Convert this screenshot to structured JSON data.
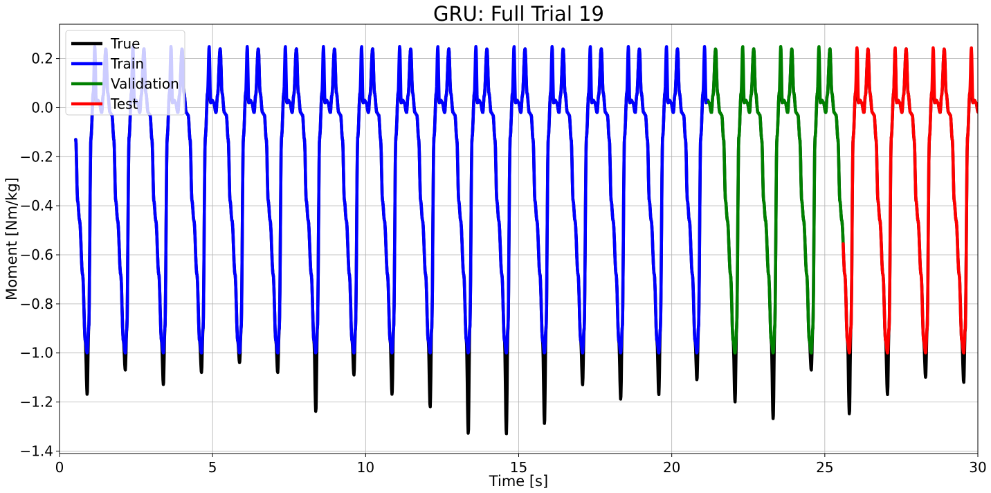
{
  "chart_data": {
    "type": "line",
    "title": "GRU: Full Trial 19",
    "xlabel": "Time [s]",
    "ylabel": "Moment [Nm/kg]",
    "xlim": [
      0,
      30
    ],
    "ylim": [
      -1.41,
      0.34
    ],
    "xticks": [
      0,
      5,
      10,
      15,
      20,
      25,
      30
    ],
    "xtick_labels": [
      "0",
      "5",
      "10",
      "15",
      "20",
      "25",
      "30"
    ],
    "yticks": [
      -1.4,
      -1.2,
      -1.0,
      -0.8,
      -0.6,
      -0.4,
      -0.2,
      0.0,
      0.2
    ],
    "ytick_labels": [
      "−1.4",
      "−1.2",
      "−1.0",
      "−0.8",
      "−0.6",
      "−0.4",
      "−0.2",
      "0.0",
      "0.2"
    ],
    "grid": true,
    "legend_position": "top-left",
    "gait_cycle_period_s": 1.245,
    "gait_cycle_start_s": 0.53,
    "series": [
      {
        "name": "True",
        "color": "#000000",
        "x_range": [
          0.53,
          30
        ],
        "cycle_minima": [
          -1.17,
          -1.07,
          -1.13,
          -1.08,
          -1.04,
          -1.08,
          -1.24,
          -1.09,
          -1.17,
          -1.22,
          -1.33,
          -1.33,
          -1.29,
          -1.13,
          -1.19,
          -1.17,
          -1.11,
          -1.2,
          -1.27,
          -1.07,
          -1.25,
          -1.17,
          -1.1,
          -1.12
        ],
        "cycle_peaks": [
          0.07,
          0.09,
          0.08,
          0.08,
          0.09,
          0.08,
          0.08,
          0.08,
          0.08,
          0.08,
          0.08,
          0.08,
          0.08,
          0.09,
          0.08,
          0.08,
          0.09,
          0.06,
          0.06,
          0.09,
          0.06,
          0.23,
          0.09,
          0.09
        ]
      },
      {
        "name": "Train",
        "color": "#0000ff",
        "x_range": [
          0.53,
          21.2
        ],
        "peak": 0.25,
        "clip_min": -1.0
      },
      {
        "name": "Validation",
        "color": "#008000",
        "x_range": [
          21.2,
          25.6
        ],
        "peak": 0.25,
        "clip_min": -1.0
      },
      {
        "name": "Test",
        "color": "#ff0000",
        "x_range": [
          25.6,
          30
        ],
        "peak": 0.245,
        "clip_min": -1.0
      }
    ]
  }
}
